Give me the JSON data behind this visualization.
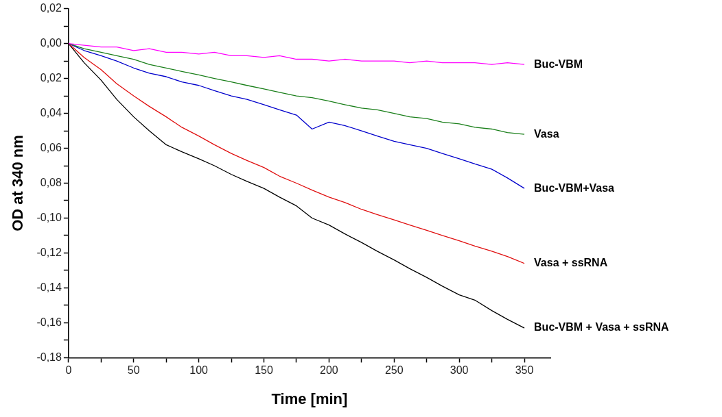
{
  "chart_data": {
    "type": "line",
    "xlabel": "Time [min]",
    "ylabel": "OD at 340 nm",
    "xlim": [
      0,
      370
    ],
    "xticks": [
      0,
      {
        "value": 25,
        "label": null
      },
      50,
      {
        "value": 75,
        "label": null
      },
      100,
      {
        "value": 125,
        "label": null
      },
      150,
      {
        "value": 175,
        "label": null
      },
      200,
      {
        "value": 225,
        "label": null
      },
      250,
      {
        "value": 275,
        "label": null
      },
      300,
      {
        "value": 325,
        "label": null
      },
      350
    ],
    "ylim": [
      -0.18,
      0.02
    ],
    "yticks": [
      {
        "value": 0.02,
        "label": "0,02"
      },
      {
        "value": 0.01,
        "label": null
      },
      {
        "value": 0,
        "label": "0,00"
      },
      {
        "value": -0.01,
        "label": null
      },
      {
        "value": -0.02,
        "label": "0,02"
      },
      {
        "value": -0.03,
        "label": null
      },
      {
        "value": -0.04,
        "label": "0,04"
      },
      {
        "value": -0.05,
        "label": null
      },
      {
        "value": -0.06,
        "label": "0,06"
      },
      {
        "value": -0.07,
        "label": null
      },
      {
        "value": -0.08,
        "label": "0,08"
      },
      {
        "value": -0.09,
        "label": null
      },
      {
        "value": -0.1,
        "label": "-0,10"
      },
      {
        "value": -0.11,
        "label": null
      },
      {
        "value": -0.12,
        "label": "-0,12"
      },
      {
        "value": -0.13,
        "label": null
      },
      {
        "value": -0.14,
        "label": "-0,14"
      },
      {
        "value": -0.15,
        "label": null
      },
      {
        "value": -0.16,
        "label": "-0,16"
      },
      {
        "value": -0.17,
        "label": null
      },
      {
        "value": -0.18,
        "label": "-0,18"
      }
    ],
    "grid": false,
    "legend": false,
    "marker": "none",
    "line_style": "solid",
    "x": [
      0,
      12,
      25,
      37,
      50,
      62,
      75,
      87,
      100,
      112,
      125,
      137,
      150,
      162,
      175,
      187,
      200,
      212,
      225,
      237,
      250,
      262,
      275,
      287,
      300,
      312,
      325,
      337,
      350
    ],
    "series": [
      {
        "name": "Buc-VBM",
        "color": "#ff00ff",
        "values": [
          0,
          -0.001,
          -0.002,
          -0.002,
          -0.004,
          -0.003,
          -0.005,
          -0.005,
          -0.006,
          -0.005,
          -0.007,
          -0.007,
          -0.008,
          -0.007,
          -0.009,
          -0.009,
          -0.01,
          -0.009,
          -0.01,
          -0.01,
          -0.01,
          -0.011,
          -0.01,
          -0.011,
          -0.011,
          -0.011,
          -0.012,
          -0.011,
          -0.012
        ]
      },
      {
        "name": "Vasa",
        "color": "#1a7f1a",
        "values": [
          0,
          -0.003,
          -0.005,
          -0.007,
          -0.009,
          -0.012,
          -0.014,
          -0.016,
          -0.018,
          -0.02,
          -0.022,
          -0.024,
          -0.026,
          -0.028,
          -0.03,
          -0.031,
          -0.033,
          -0.035,
          -0.037,
          -0.038,
          -0.04,
          -0.042,
          -0.043,
          -0.045,
          -0.046,
          -0.048,
          -0.049,
          -0.051,
          -0.052
        ]
      },
      {
        "name": "Buc-VBM+Vasa",
        "color": "#0000cc",
        "values": [
          0,
          -0.004,
          -0.007,
          -0.01,
          -0.014,
          -0.017,
          -0.019,
          -0.022,
          -0.024,
          -0.027,
          -0.03,
          -0.032,
          -0.035,
          -0.038,
          -0.041,
          -0.049,
          -0.045,
          -0.047,
          -0.05,
          -0.053,
          -0.056,
          -0.058,
          -0.06,
          -0.063,
          -0.066,
          -0.069,
          -0.072,
          -0.077,
          -0.083
        ]
      },
      {
        "name": "Vasa + ssRNA",
        "color": "#e01010",
        "values": [
          0,
          -0.008,
          -0.015,
          -0.023,
          -0.03,
          -0.036,
          -0.042,
          -0.048,
          -0.053,
          -0.058,
          -0.063,
          -0.067,
          -0.071,
          -0.076,
          -0.08,
          -0.084,
          -0.088,
          -0.091,
          -0.095,
          -0.098,
          -0.101,
          -0.104,
          -0.107,
          -0.11,
          -0.113,
          -0.116,
          -0.119,
          -0.122,
          -0.126
        ]
      },
      {
        "name": "Buc-VBM + Vasa + ssRNA",
        "color": "#000000",
        "values": [
          0,
          -0.011,
          -0.021,
          -0.032,
          -0.042,
          -0.05,
          -0.058,
          -0.062,
          -0.066,
          -0.07,
          -0.075,
          -0.079,
          -0.083,
          -0.088,
          -0.093,
          -0.1,
          -0.104,
          -0.109,
          -0.114,
          -0.119,
          -0.124,
          -0.129,
          -0.134,
          -0.139,
          -0.144,
          -0.147,
          -0.153,
          -0.158,
          -0.163
        ]
      }
    ]
  }
}
